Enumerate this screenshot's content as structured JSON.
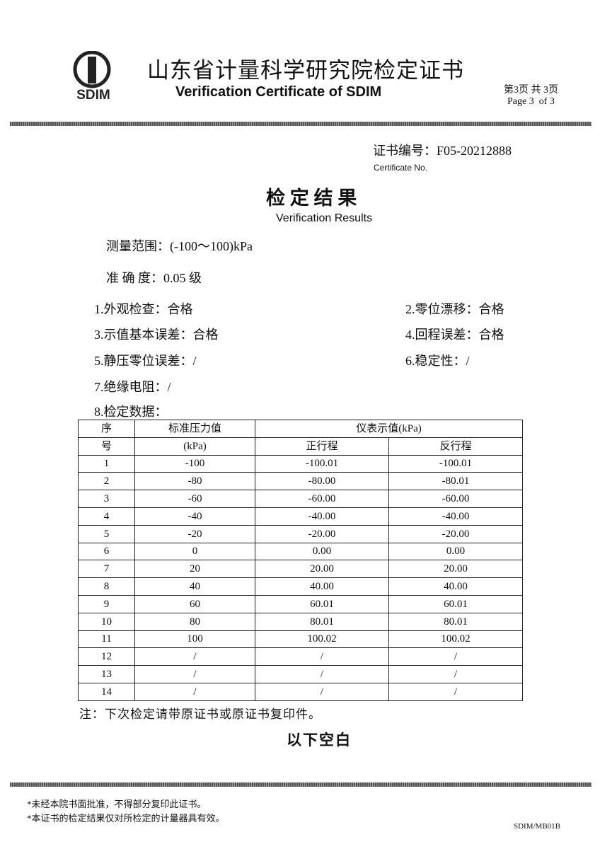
{
  "header": {
    "logo_text": "SDIM",
    "title_cn": "山东省计量科学研究院检定证书",
    "title_en": "Verification Certificate of SDIM",
    "page_cn": "第3页 共 3页",
    "page_en": "Page 3  of 3"
  },
  "certificate": {
    "number": "证书编号：F05-20212888",
    "label_en": "Certificate No."
  },
  "section": {
    "title_cn": "检 定 结 果",
    "title_en": "Verification Results"
  },
  "range": "测量范围：(-100～100)kPa",
  "accuracy": "准 确 度：0.05 级",
  "items": [
    "1.外观检查：合格",
    "2.零位漂移：合格",
    "3.示值基本误差：合格",
    "4.回程误差：合格",
    "5.静压零位误差：/",
    "6.稳定性：/",
    "7.绝缘电阻：/",
    "8.检定数据："
  ],
  "table": {
    "header": [
      [
        "序",
        "标准压力值",
        "仪表示值(kPa)"
      ],
      [
        "号",
        "(kPa)",
        "正行程",
        "反行程"
      ]
    ],
    "rows": [
      [
        "1",
        "-100",
        "-100.01",
        "-100.01"
      ],
      [
        "2",
        "-80",
        "-80.00",
        "-80.01"
      ],
      [
        "3",
        "-60",
        "-60.00",
        "-60.00"
      ],
      [
        "4",
        "-40",
        "-40.00",
        "-40.00"
      ],
      [
        "5",
        "-20",
        "-20.00",
        "-20.00"
      ],
      [
        "6",
        "0",
        "0.00",
        "0.00"
      ],
      [
        "7",
        "20",
        "20.00",
        "20.00"
      ],
      [
        "8",
        "40",
        "40.00",
        "40.00"
      ],
      [
        "9",
        "60",
        "60.01",
        "60.01"
      ],
      [
        "10",
        "80",
        "80.01",
        "80.01"
      ],
      [
        "11",
        "100",
        "100.02",
        "100.02"
      ],
      [
        "12",
        "/",
        "/",
        "/"
      ],
      [
        "13",
        "/",
        "/",
        "/"
      ],
      [
        "14",
        "/",
        "/",
        "/"
      ]
    ]
  },
  "note": "注：下次检定请带原证书或原证书复印件。",
  "closing": "以下空白",
  "footer": {
    "notes": [
      "*未经本院书面批准，不得部分复印此证书。",
      "*本证书的检定结果仅对所检定的计量器具有效。"
    ],
    "form_code": "SDIM/MB01B"
  }
}
